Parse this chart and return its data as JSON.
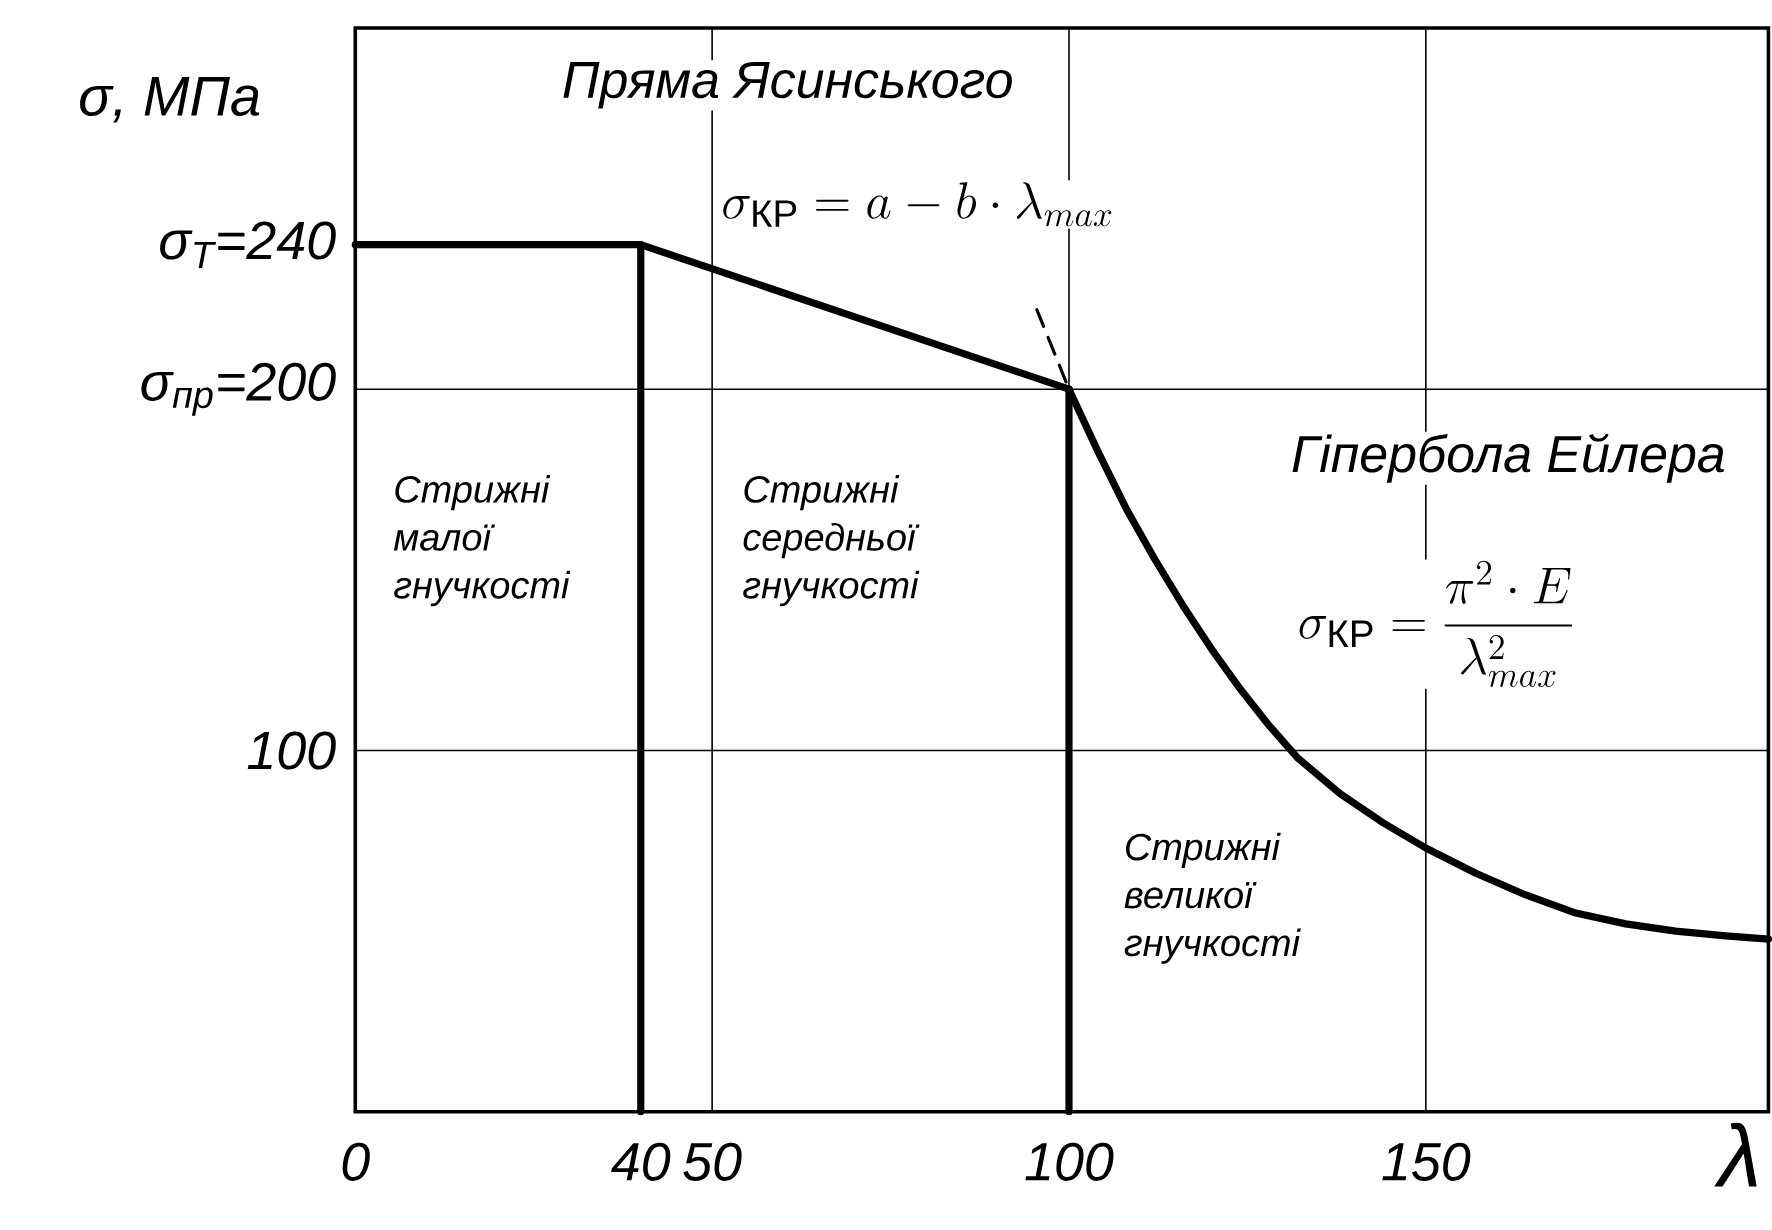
{
  "chart_data": {
    "type": "line",
    "xlabel": "λ",
    "ylabel": "σ, МПа",
    "xlim": [
      0,
      198
    ],
    "ylim": [
      0,
      300
    ],
    "xticks": [
      0,
      40,
      50,
      100,
      150
    ],
    "yticks": [
      {
        "value": 100,
        "label": "100"
      },
      {
        "value": 200,
        "label": "σ$_{пр}$=200"
      },
      {
        "value": 240,
        "label": "σ$_{Т}$=240"
      }
    ],
    "marker": "none",
    "series": [
      {
        "color": "#000000",
        "x": [
          0,
          40,
          100
        ],
        "values": [
          240,
          240,
          200
        ]
      },
      {
        "color": "#000000",
        "x": [
          100,
          104,
          108,
          112,
          116,
          120,
          124,
          128,
          132,
          138,
          144,
          150,
          157,
          164,
          171,
          178,
          185,
          192,
          198
        ],
        "values": [
          200,
          183,
          167,
          153,
          140,
          128,
          117,
          107,
          98,
          88,
          80,
          73,
          66,
          60,
          55,
          52,
          50,
          48.7,
          47.8
        ]
      },
      {
        "color": "#000000",
        "line_style": "dashed",
        "x": [
          95.5,
          100
        ],
        "values": [
          222,
          200
        ]
      },
      {
        "color": "#000000",
        "x": [
          40,
          40
        ],
        "values": [
          0,
          240
        ]
      },
      {
        "color": "#000000",
        "x": [
          100,
          100
        ],
        "values": [
          0,
          200
        ]
      }
    ],
    "ref_lines": [
      {
        "axis": "x",
        "value": 50,
        "color": "#000000"
      },
      {
        "axis": "x",
        "value": 100,
        "color": "#000000"
      },
      {
        "axis": "x",
        "value": 150,
        "color": "#000000"
      },
      {
        "axis": "y",
        "value": 100,
        "color": "#000000"
      },
      {
        "axis": "y",
        "value": 200,
        "color": "#000000"
      }
    ],
    "annotations": [
      "Пряма Ясинського",
      "\\sigma_{\\text{КР}}=a-b\\cdot\\lambda_{max}",
      "Гіпербола Ейлера",
      "\\sigma_{\\text{КР}}=\\dfrac{\\pi^{2}\\cdot E}{\\lambda_{max}^{2}}",
      "Стрижні малої гнучкості",
      "Стрижні середньої гнучкості",
      "Стрижні великої гнучкості"
    ]
  }
}
